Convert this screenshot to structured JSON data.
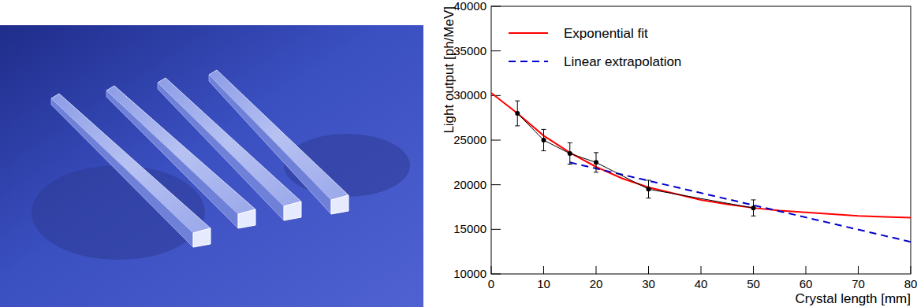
{
  "chart_data": {
    "type": "line",
    "x_label": "Crystal length [mm]",
    "y_label": "Light output [ph/MeV]",
    "xlim": [
      0,
      80
    ],
    "ylim": [
      10000,
      40000
    ],
    "xticks": [
      0,
      10,
      20,
      30,
      40,
      50,
      60,
      70,
      80
    ],
    "yticks": [
      10000,
      15000,
      20000,
      25000,
      30000,
      35000,
      40000
    ],
    "grid": false,
    "legend": "top-left",
    "series": [
      {
        "name": "Exponential fit",
        "type": "line",
        "color": "#ff0000",
        "line_style": "solid",
        "x": [
          0,
          5,
          10,
          15,
          20,
          25,
          30,
          35,
          40,
          45,
          50,
          55,
          60,
          65,
          70,
          75,
          80
        ],
        "values": [
          30300,
          28000,
          25500,
          23600,
          22000,
          20700,
          19700,
          19000,
          18300,
          17800,
          17400,
          17100,
          16900,
          16700,
          16500,
          16400,
          16300
        ]
      },
      {
        "name": "Linear extrapolation",
        "type": "line",
        "color": "#0000cc",
        "line_style": "dashed",
        "x": [
          15,
          80
        ],
        "values": [
          22500,
          13600
        ]
      },
      {
        "type": "line",
        "color": "#000000",
        "marker": "circle",
        "line_style": "solid",
        "x": [
          5,
          10,
          15,
          20,
          30,
          50
        ],
        "values": [
          28000,
          25000,
          23500,
          22500,
          19500,
          17400
        ],
        "errors": [
          1400,
          1200,
          1200,
          1100,
          1000,
          900
        ]
      }
    ]
  }
}
